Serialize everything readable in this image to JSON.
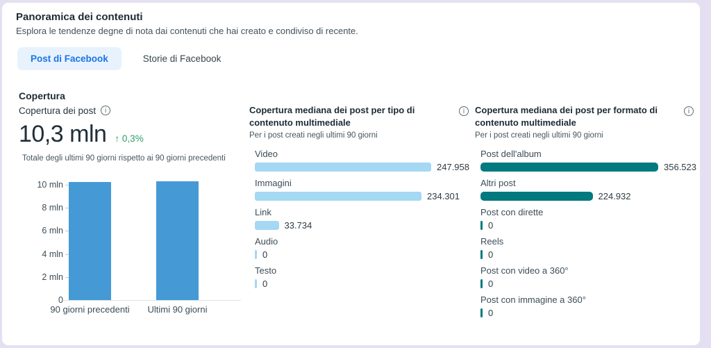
{
  "page": {
    "title": "Panoramica dei contenuti",
    "subtitle": "Esplora le tendenze degne di nota dai contenuti che hai creato e condiviso di recente."
  },
  "tabs": [
    {
      "label": "Post di Facebook",
      "active": true
    },
    {
      "label": "Storie di Facebook",
      "active": false
    }
  ],
  "section_heading": "Copertura",
  "reach_summary": {
    "label": "Copertura dei post",
    "value": "10,3 mln",
    "trend_arrow": "↑",
    "trend_value": "0,3%",
    "caption": "Totale degli ultimi 90 giorni rispetto ai 90 giorni precedenti"
  },
  "icons": {
    "info": "i"
  },
  "colors": {
    "accent_blue": "#1b74e4",
    "active_tab_background": "#e7f2fd",
    "bar_blue": "#459ad6",
    "bar_light_blue": "#a5d8f3",
    "bar_teal": "#00797f",
    "positive_green": "#2a9d69",
    "page_background": "#e5e0f1",
    "card_background": "#ffffff"
  },
  "chart_data": [
    {
      "type": "bar",
      "title": "Copertura dei post",
      "categories": [
        "90 giorni precedenti",
        "Ultimi 90 giorni"
      ],
      "values": [
        10270000,
        10300000
      ],
      "axis_max": 10000000,
      "grid": false,
      "yticks": [
        {
          "value": 10000000,
          "label": "10 mln"
        },
        {
          "value": 8000000,
          "label": "8 mln"
        },
        {
          "value": 6000000,
          "label": "6 mln"
        },
        {
          "value": 4000000,
          "label": "4 mln"
        },
        {
          "value": 2000000,
          "label": "2 mln"
        },
        {
          "value": 0,
          "label": "0"
        }
      ]
    },
    {
      "type": "bar",
      "orientation": "horizontal",
      "title": "Copertura mediana dei post per tipo di contenuto multimediale",
      "subtitle": "Per i post creati negli ultimi 90 giorni",
      "items": [
        {
          "label": "Video",
          "value": 247958,
          "display": "247.958"
        },
        {
          "label": "Immagini",
          "value": 234301,
          "display": "234.301"
        },
        {
          "label": "Link",
          "value": 33734,
          "display": "33.734"
        },
        {
          "label": "Audio",
          "value": 0,
          "display": "0"
        },
        {
          "label": "Testo",
          "value": 0,
          "display": "0"
        }
      ]
    },
    {
      "type": "bar",
      "orientation": "horizontal",
      "title": "Copertura mediana dei post per formato di contenuto multimediale",
      "subtitle": "Per i post creati negli ultimi 90 giorni",
      "items": [
        {
          "label": "Post dell'album",
          "value": 356523,
          "display": "356.523"
        },
        {
          "label": "Altri post",
          "value": 224932,
          "display": "224.932"
        },
        {
          "label": "Post con dirette",
          "value": 0,
          "display": "0"
        },
        {
          "label": "Reels",
          "value": 0,
          "display": "0"
        },
        {
          "label": "Post con video a 360°",
          "value": 0,
          "display": "0"
        },
        {
          "label": "Post con immagine a 360°",
          "value": 0,
          "display": "0"
        }
      ]
    }
  ]
}
